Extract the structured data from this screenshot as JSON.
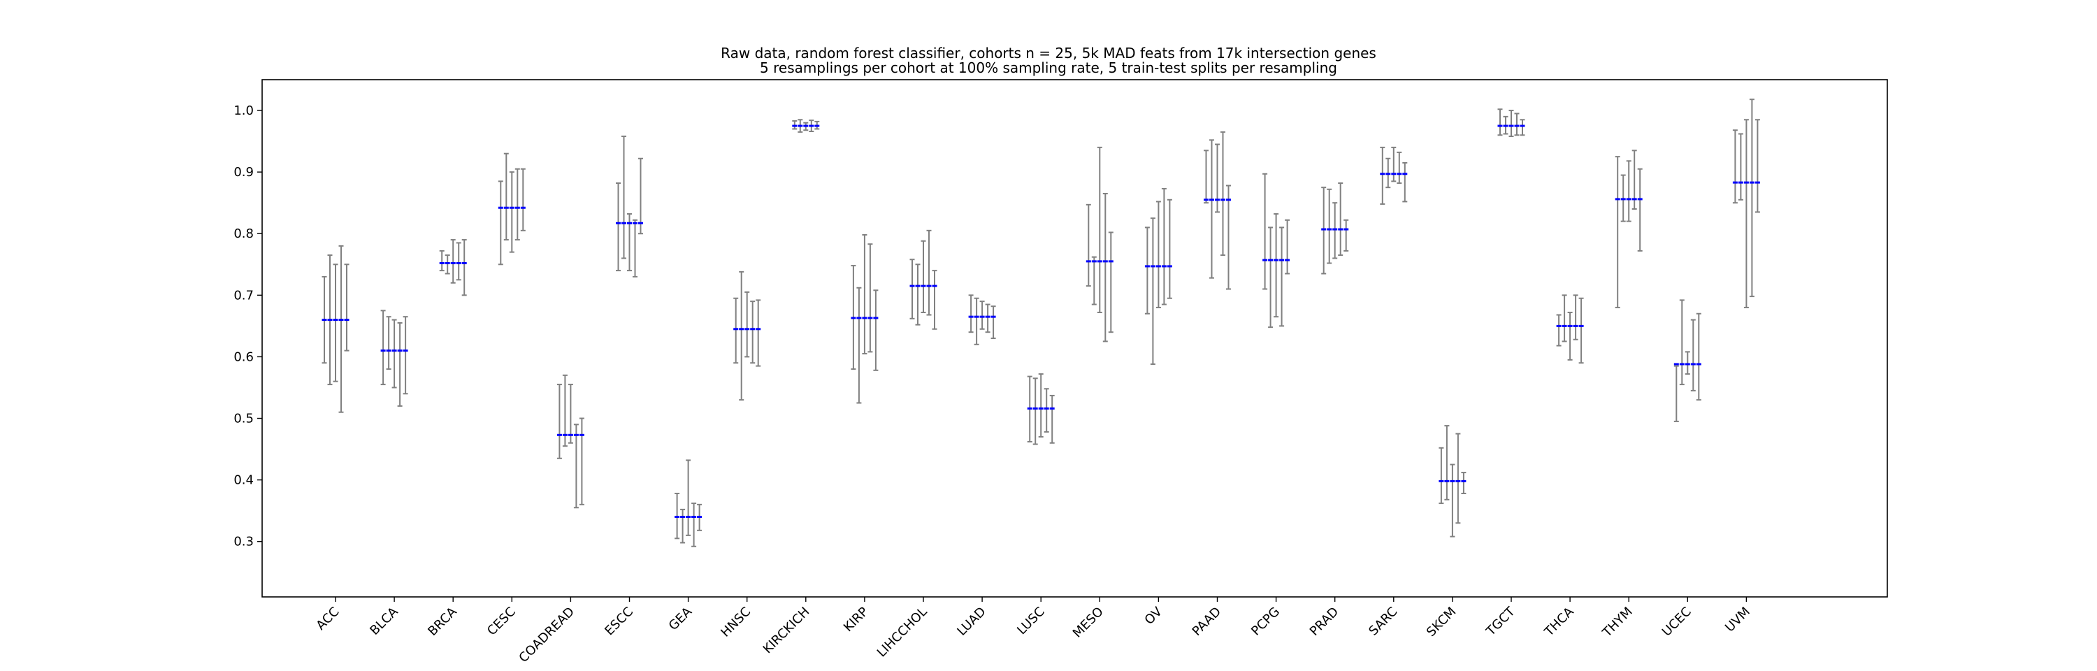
{
  "chart_data": {
    "type": "errorbar",
    "title_lines": [
      "Raw data, random forest classifier, cohorts n = 25, 5k MAD feats from 17k intersection genes",
      "5 resamplings per cohort at 100% sampling rate, 5 train-test splits per resampling"
    ],
    "xlabel": "",
    "ylabel": "",
    "ylim": [
      0.21,
      1.05
    ],
    "yticks": [
      0.3,
      0.4,
      0.5,
      0.6,
      0.7,
      0.8,
      0.9,
      1.0
    ],
    "ytick_labels": [
      "0.3",
      "0.4",
      "0.5",
      "0.6",
      "0.7",
      "0.8",
      "0.9",
      "1.0"
    ],
    "grid": false,
    "colors": {
      "mean_marker": "#0000ff",
      "errorbar": "#808080",
      "axes": "#000000"
    },
    "categories": [
      "ACC",
      "BLCA",
      "BRCA",
      "CESC",
      "COADREAD",
      "ESCC",
      "GEA",
      "HNSC",
      "KIRCKICH",
      "KIRP",
      "LIHCCHOL",
      "LUAD",
      "LUSC",
      "MESO",
      "OV",
      "PAAD",
      "PCPG",
      "PRAD",
      "SARC",
      "SKCM",
      "TGCT",
      "THCA",
      "THYM",
      "UCEC",
      "UVM"
    ],
    "resamplings_per_cohort": 5,
    "cohorts": [
      {
        "name": "ACC",
        "mean": 0.66,
        "ranges": [
          [
            0.59,
            0.73
          ],
          [
            0.555,
            0.765
          ],
          [
            0.56,
            0.75
          ],
          [
            0.51,
            0.78
          ],
          [
            0.61,
            0.75
          ]
        ]
      },
      {
        "name": "BLCA",
        "mean": 0.61,
        "ranges": [
          [
            0.555,
            0.675
          ],
          [
            0.58,
            0.665
          ],
          [
            0.55,
            0.66
          ],
          [
            0.52,
            0.655
          ],
          [
            0.54,
            0.665
          ]
        ]
      },
      {
        "name": "BRCA",
        "mean": 0.752,
        "ranges": [
          [
            0.74,
            0.772
          ],
          [
            0.735,
            0.765
          ],
          [
            0.72,
            0.79
          ],
          [
            0.725,
            0.785
          ],
          [
            0.7,
            0.79
          ]
        ]
      },
      {
        "name": "CESC",
        "mean": 0.842,
        "ranges": [
          [
            0.75,
            0.885
          ],
          [
            0.79,
            0.93
          ],
          [
            0.77,
            0.9
          ],
          [
            0.79,
            0.905
          ],
          [
            0.805,
            0.905
          ]
        ]
      },
      {
        "name": "COADREAD",
        "mean": 0.473,
        "ranges": [
          [
            0.435,
            0.555
          ],
          [
            0.455,
            0.57
          ],
          [
            0.46,
            0.555
          ],
          [
            0.355,
            0.49
          ],
          [
            0.36,
            0.5
          ]
        ]
      },
      {
        "name": "ESCC",
        "mean": 0.817,
        "ranges": [
          [
            0.74,
            0.882
          ],
          [
            0.76,
            0.958
          ],
          [
            0.74,
            0.832
          ],
          [
            0.73,
            0.822
          ],
          [
            0.8,
            0.922
          ]
        ]
      },
      {
        "name": "GEA",
        "mean": 0.34,
        "ranges": [
          [
            0.305,
            0.378
          ],
          [
            0.298,
            0.352
          ],
          [
            0.31,
            0.432
          ],
          [
            0.292,
            0.362
          ],
          [
            0.318,
            0.36
          ]
        ]
      },
      {
        "name": "HNSC",
        "mean": 0.645,
        "ranges": [
          [
            0.59,
            0.695
          ],
          [
            0.53,
            0.738
          ],
          [
            0.6,
            0.705
          ],
          [
            0.59,
            0.69
          ],
          [
            0.585,
            0.692
          ]
        ]
      },
      {
        "name": "KIRCKICH",
        "mean": 0.975,
        "ranges": [
          [
            0.97,
            0.983
          ],
          [
            0.965,
            0.985
          ],
          [
            0.968,
            0.98
          ],
          [
            0.966,
            0.984
          ],
          [
            0.97,
            0.982
          ]
        ]
      },
      {
        "name": "KIRP",
        "mean": 0.663,
        "ranges": [
          [
            0.58,
            0.748
          ],
          [
            0.525,
            0.712
          ],
          [
            0.605,
            0.798
          ],
          [
            0.608,
            0.783
          ],
          [
            0.578,
            0.708
          ]
        ]
      },
      {
        "name": "LIHCCHOL",
        "mean": 0.715,
        "ranges": [
          [
            0.662,
            0.758
          ],
          [
            0.652,
            0.75
          ],
          [
            0.672,
            0.788
          ],
          [
            0.668,
            0.805
          ],
          [
            0.645,
            0.74
          ]
        ]
      },
      {
        "name": "LUAD",
        "mean": 0.665,
        "ranges": [
          [
            0.64,
            0.7
          ],
          [
            0.62,
            0.695
          ],
          [
            0.645,
            0.69
          ],
          [
            0.64,
            0.685
          ],
          [
            0.63,
            0.682
          ]
        ]
      },
      {
        "name": "LUSC",
        "mean": 0.516,
        "ranges": [
          [
            0.462,
            0.568
          ],
          [
            0.458,
            0.565
          ],
          [
            0.47,
            0.572
          ],
          [
            0.478,
            0.548
          ],
          [
            0.46,
            0.537
          ]
        ]
      },
      {
        "name": "MESO",
        "mean": 0.755,
        "ranges": [
          [
            0.715,
            0.847
          ],
          [
            0.685,
            0.762
          ],
          [
            0.672,
            0.94
          ],
          [
            0.625,
            0.865
          ],
          [
            0.64,
            0.802
          ]
        ]
      },
      {
        "name": "OV",
        "mean": 0.747,
        "ranges": [
          [
            0.67,
            0.81
          ],
          [
            0.588,
            0.825
          ],
          [
            0.68,
            0.852
          ],
          [
            0.685,
            0.873
          ],
          [
            0.695,
            0.855
          ]
        ]
      },
      {
        "name": "PAAD",
        "mean": 0.855,
        "ranges": [
          [
            0.85,
            0.935
          ],
          [
            0.728,
            0.952
          ],
          [
            0.835,
            0.945
          ],
          [
            0.765,
            0.965
          ],
          [
            0.71,
            0.878
          ]
        ]
      },
      {
        "name": "PCPG",
        "mean": 0.757,
        "ranges": [
          [
            0.71,
            0.897
          ],
          [
            0.648,
            0.81
          ],
          [
            0.665,
            0.832
          ],
          [
            0.65,
            0.81
          ],
          [
            0.735,
            0.822
          ]
        ]
      },
      {
        "name": "PRAD",
        "mean": 0.807,
        "ranges": [
          [
            0.735,
            0.875
          ],
          [
            0.752,
            0.872
          ],
          [
            0.76,
            0.85
          ],
          [
            0.765,
            0.882
          ],
          [
            0.772,
            0.822
          ]
        ]
      },
      {
        "name": "SARC",
        "mean": 0.897,
        "ranges": [
          [
            0.848,
            0.94
          ],
          [
            0.875,
            0.922
          ],
          [
            0.885,
            0.94
          ],
          [
            0.882,
            0.932
          ],
          [
            0.852,
            0.915
          ]
        ]
      },
      {
        "name": "SKCM",
        "mean": 0.398,
        "ranges": [
          [
            0.362,
            0.452
          ],
          [
            0.368,
            0.488
          ],
          [
            0.308,
            0.425
          ],
          [
            0.33,
            0.475
          ],
          [
            0.378,
            0.412
          ]
        ]
      },
      {
        "name": "TGCT",
        "mean": 0.975,
        "ranges": [
          [
            0.96,
            1.002
          ],
          [
            0.962,
            0.99
          ],
          [
            0.958,
            1.0
          ],
          [
            0.96,
            0.995
          ],
          [
            0.96,
            0.985
          ]
        ]
      },
      {
        "name": "THCA",
        "mean": 0.65,
        "ranges": [
          [
            0.618,
            0.668
          ],
          [
            0.625,
            0.7
          ],
          [
            0.595,
            0.672
          ],
          [
            0.628,
            0.7
          ],
          [
            0.59,
            0.695
          ]
        ]
      },
      {
        "name": "THYM",
        "mean": 0.856,
        "ranges": [
          [
            0.68,
            0.925
          ],
          [
            0.82,
            0.895
          ],
          [
            0.82,
            0.918
          ],
          [
            0.84,
            0.935
          ],
          [
            0.772,
            0.905
          ]
        ]
      },
      {
        "name": "UCEC",
        "mean": 0.588,
        "ranges": [
          [
            0.495,
            0.585
          ],
          [
            0.555,
            0.692
          ],
          [
            0.572,
            0.608
          ],
          [
            0.545,
            0.66
          ],
          [
            0.53,
            0.67
          ]
        ]
      },
      {
        "name": "UVM",
        "mean": 0.883,
        "ranges": [
          [
            0.85,
            0.968
          ],
          [
            0.855,
            0.962
          ],
          [
            0.68,
            0.985
          ],
          [
            0.698,
            1.018
          ],
          [
            0.835,
            0.985
          ]
        ]
      }
    ]
  }
}
